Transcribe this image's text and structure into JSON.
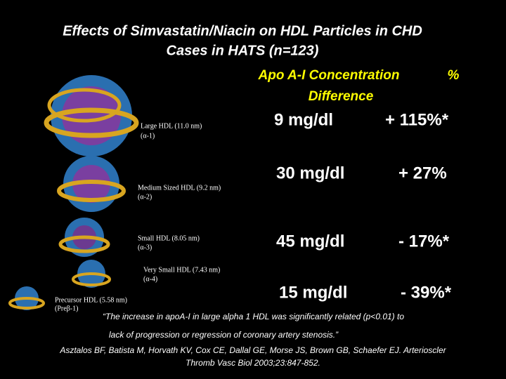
{
  "title": [
    "Effects of Simvastatin/Niacin on HDL Particles in CHD",
    "Cases  in HATS (n=123)"
  ],
  "columns": {
    "concentration": [
      "Apo A-I Concentration",
      "Difference"
    ],
    "percent": "%"
  },
  "particles": [
    [
      "Large HDL (11.0 nm)",
      "(α-1)"
    ],
    [
      "Medium Sized HDL (9.2 nm)",
      "(α-2)"
    ],
    [
      "Small HDL (8.05 nm)",
      "(α-3)"
    ],
    [
      "Very Small HDL (7.43 nm)",
      "(α-4)"
    ],
    [
      "Precursor HDL (5.58 nm)",
      "(Preβ-1)"
    ]
  ],
  "rows": [
    [
      "9 mg/dl",
      "+ 115%*"
    ],
    [
      "30 mg/dl",
      "+ 27%"
    ],
    [
      "45 mg/dl",
      "- 17%*"
    ],
    [
      "15 mg/dl",
      "- 39%*"
    ]
  ],
  "quote": [
    "“The increase in apoA-I in large alpha 1 HDL was significantly related (p<0.01) to",
    "lack of progression or regression of coronary artery stenosis.”"
  ],
  "citation": [
    "Asztalos BF, Batista M, Horvath KV, Cox CE, Dallal GE, Morse JS, Brown GB, Schaefer EJ. Arterioscler",
    "Thromb Vasc Biol 2003;23:847-852."
  ]
}
